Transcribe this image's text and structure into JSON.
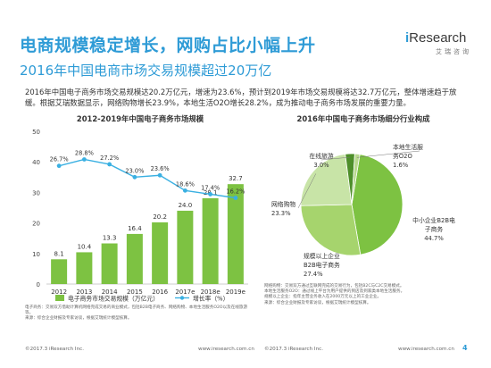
{
  "header": {
    "title": "电商规模稳定增长，网购占比小幅上升",
    "subtitle": "2016年中国电商市场交易规模超过20万亿"
  },
  "logo": {
    "brand_i": "i",
    "brand_rest": "Research",
    "sub": "艾瑞咨询"
  },
  "intro_text": "2016年中国电子商务市场交易规模达20.2万亿元，增速为23.6%，预计到2019年市场交易规模将达32.7万亿元，整体增速趋于放缓。根据艾瑞数据显示，网络购物增长23.9%，本地生活O2O增长28.2%，成为推动电子商务市场发展的重要力量。",
  "colors": {
    "brand_blue": "#2e9bd6",
    "bar_green": "#7dc242",
    "line_blue": "#3ab0e2"
  },
  "chart_data": [
    {
      "type": "bar",
      "title": "2012-2019年中国电子商务市场规模",
      "categories": [
        "2012",
        "2013",
        "2014",
        "2015",
        "2016",
        "2017e",
        "2018e",
        "2019e"
      ],
      "series": [
        {
          "name": "电子商务市场交易规模（万亿元）",
          "type": "bar",
          "values": [
            8.1,
            10.4,
            13.3,
            16.4,
            20.2,
            24.0,
            28.1,
            32.7
          ],
          "labels": [
            "8.1",
            "10.4",
            "13.3",
            "16.4",
            "20.2",
            "24.0",
            "28.1",
            "32.7"
          ]
        },
        {
          "name": "增长率（%）",
          "type": "line",
          "values": [
            26.7,
            28.8,
            27.2,
            23.0,
            23.6,
            18.6,
            17.4,
            16.2
          ],
          "labels": [
            "26.7%",
            "28.8%",
            "27.2%",
            "23.0%",
            "23.6%",
            "18.6%",
            "17.4%",
            "16.2%"
          ]
        }
      ],
      "yticks": [
        "0",
        "10",
        "20",
        "30",
        "40",
        "50"
      ],
      "ylim": [
        0,
        50
      ],
      "grid": false,
      "legend": "bottom"
    },
    {
      "type": "pie",
      "title": "2016年中国电子商务市场细分行业构成",
      "slices": [
        {
          "name": "中小企业B2B电子商务",
          "label_lines": [
            "中小企业B2B电",
            "子商务"
          ],
          "value": 44.7,
          "value_label": "44.7%"
        },
        {
          "name": "规模以上企业B2B电子商务",
          "label_lines": [
            "规模以上企业",
            "B2B电子商务"
          ],
          "value": 27.4,
          "value_label": "27.4%"
        },
        {
          "name": "网络购物",
          "label_lines": [
            "网络购物"
          ],
          "value": 23.3,
          "value_label": "23.3%"
        },
        {
          "name": "在线旅游",
          "label_lines": [
            "在线旅游"
          ],
          "value": 3.0,
          "value_label": "3.0%"
        },
        {
          "name": "本地生活服务O2O",
          "label_lines": [
            "本地生活服",
            "务O2O"
          ],
          "value": 1.6,
          "value_label": "1.6%"
        }
      ]
    }
  ],
  "notes": {
    "left": [
      "电子商务：交易双方借助计算机网络完成交易的商业模式，包括B2B电子商务、网络购物、本地生活服务O2O以及在线旅游等。",
      "来源：综合企业财报及专家访谈，根据艾瑞统计模型核算。"
    ],
    "right": [
      "网络购物：交易双方通过互联网完成的交易行为，包括B2C与C2C交易模式。",
      "本地生活服务O2O：通过线上平台为用户提供的到店及到家类本地生活服务。",
      "规模以上企业：指年主营业务收入在2000万元以上的工业企业。",
      "来源：综合企业财报及专家访谈，根据艾瑞统计模型核算。"
    ]
  },
  "footer": {
    "left_copyright": "©2017.3 iResearch Inc.",
    "left_site": "www.iresearch.com.cn",
    "right_copyright": "©2017.3 iResearch Inc.",
    "right_site": "www.iresearch.com.cn",
    "page_number": "4"
  }
}
